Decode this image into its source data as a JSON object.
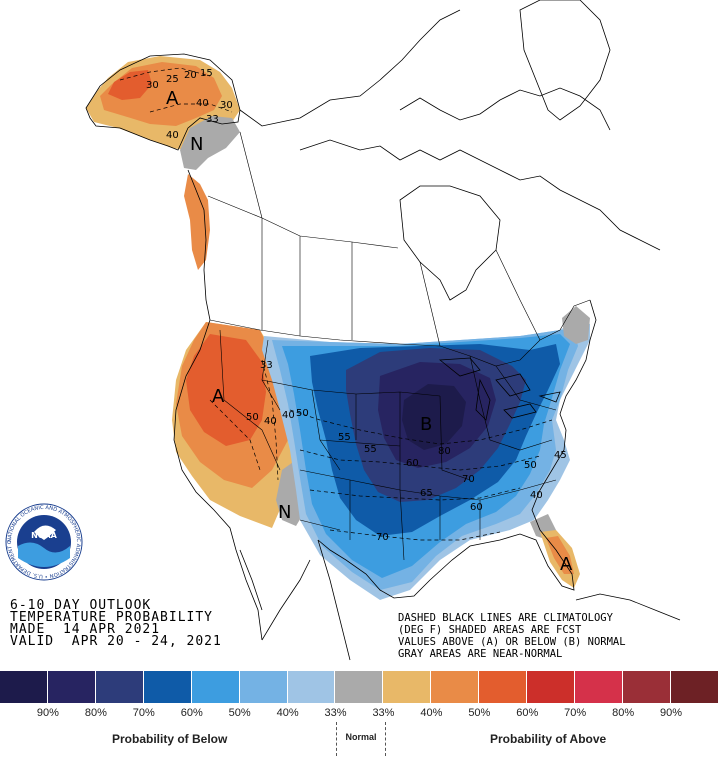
{
  "header": {
    "lines": [
      "6-10 DAY OUTLOOK",
      "TEMPERATURE PROBABILITY",
      "MADE  14 APR 2021",
      "VALID  APR 20 - 24, 2021"
    ]
  },
  "notes": {
    "lines": [
      "DASHED BLACK LINES ARE CLIMATOLOGY",
      "(DEG F) SHADED AREAS ARE FCST",
      "VALUES ABOVE (A) OR BELOW (B) NORMAL",
      "GRAY AREAS ARE NEAR-NORMAL"
    ]
  },
  "logo": {
    "name": "NOAA",
    "ring_text": "NATIONAL OCEANIC AND ATMOSPHERIC ADMINISTRATION • U.S. DEPARTMENT OF COMMERCE •"
  },
  "region_labels": [
    {
      "id": "alaska-above",
      "text": "A"
    },
    {
      "id": "yukon-normal",
      "text": "N"
    },
    {
      "id": "west-above",
      "text": "A"
    },
    {
      "id": "southwest-normal",
      "text": "N"
    },
    {
      "id": "midwest-below",
      "text": "B"
    },
    {
      "id": "florida-above",
      "text": "A"
    }
  ],
  "climatology_labels": [
    {
      "id": "ak1",
      "text": "30"
    },
    {
      "id": "ak2",
      "text": "25"
    },
    {
      "id": "ak3",
      "text": "20"
    },
    {
      "id": "ak4",
      "text": "15"
    },
    {
      "id": "ak5",
      "text": "40"
    },
    {
      "id": "ak6",
      "text": "30"
    },
    {
      "id": "ak7",
      "text": "33"
    },
    {
      "id": "ak8",
      "text": "40"
    },
    {
      "id": "us1",
      "text": "33"
    },
    {
      "id": "us2",
      "text": "50"
    },
    {
      "id": "us3",
      "text": "40"
    },
    {
      "id": "us4",
      "text": "40"
    },
    {
      "id": "us5",
      "text": "50"
    },
    {
      "id": "us6",
      "text": "55"
    },
    {
      "id": "us7",
      "text": "55"
    },
    {
      "id": "us8",
      "text": "60"
    },
    {
      "id": "us9",
      "text": "65"
    },
    {
      "id": "us10",
      "text": "80"
    },
    {
      "id": "us11",
      "text": "70"
    },
    {
      "id": "us12",
      "text": "60"
    },
    {
      "id": "us13",
      "text": "70"
    },
    {
      "id": "us14",
      "text": "50"
    },
    {
      "id": "us15",
      "text": "40"
    },
    {
      "id": "us16",
      "text": "45"
    }
  ],
  "legend": {
    "colors": [
      "#1d1b4b",
      "#272461",
      "#2d3c7a",
      "#0f5ba8",
      "#3d9de0",
      "#74b2e4",
      "#9fc4e5",
      "#aaaaaa",
      "#e8b868",
      "#e98b47",
      "#e35d2e",
      "#cc2f2a",
      "#d5314a",
      "#9a2f37",
      "#6d2125"
    ],
    "ticks": [
      "90%",
      "80%",
      "70%",
      "60%",
      "50%",
      "40%",
      "33%",
      "33%",
      "40%",
      "50%",
      "60%",
      "70%",
      "80%",
      "90%"
    ],
    "below_label": "Probability of Below",
    "normal_label": "Normal",
    "above_label": "Probability of Above"
  }
}
